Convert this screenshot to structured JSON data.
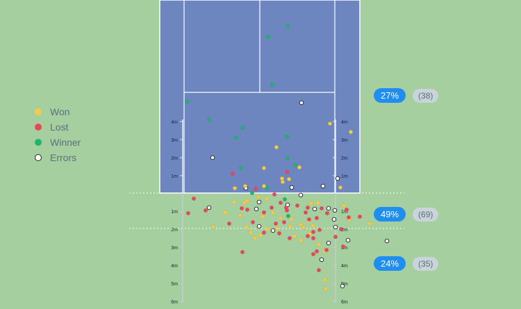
{
  "legend": [
    {
      "label": "Won",
      "color": "#f7c948"
    },
    {
      "label": "Lost",
      "color": "#e8465f"
    },
    {
      "label": "Winner",
      "color": "#1fb56a"
    },
    {
      "label": "Errors",
      "color": "#ffffff"
    }
  ],
  "zones": [
    {
      "percent": "27%",
      "count": "(38)"
    },
    {
      "percent": "49%",
      "count": "(69)"
    },
    {
      "percent": "24%",
      "count": "(35)"
    }
  ],
  "ruler_labels_court": [
    "4m",
    "3m",
    "2m",
    "1m"
  ],
  "ruler_labels_back": [
    "1m",
    "2m",
    "3m",
    "4m",
    "5m",
    "6m"
  ],
  "colors": {
    "background": "#a6cfa0",
    "court": "#6d86bf",
    "lines": "#ffffff",
    "won": "#f7c948",
    "lost": "#e8465f",
    "winner": "#1fb56a",
    "error": "#ffffff"
  }
}
